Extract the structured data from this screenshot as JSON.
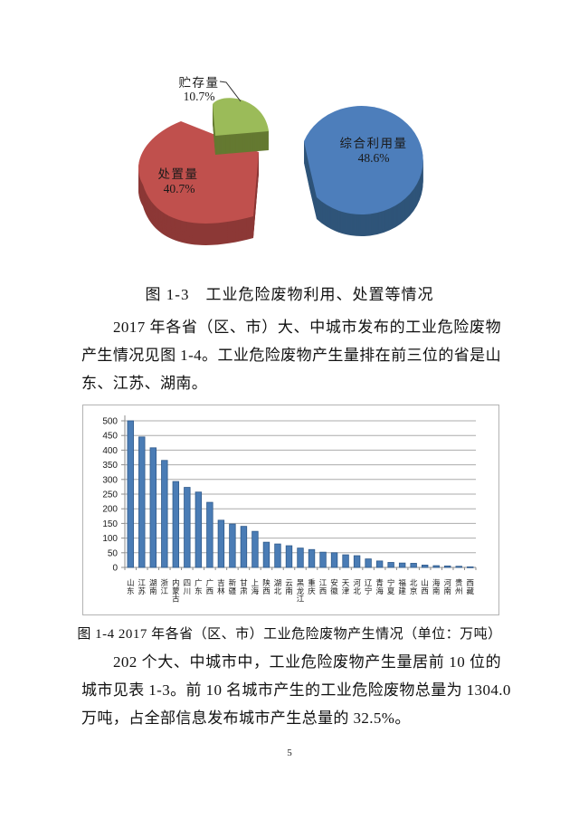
{
  "page": {
    "number": "5"
  },
  "figures": {
    "fig3_caption": "图 1-3　工业危险废物利用、处置等情况",
    "fig4_caption": "图 1-4 2017 年各省（区、市）工业危险废物产生情况（单位：万吨）"
  },
  "paragraphs": {
    "p1_line1": "2017 年各省（区、市）大、中城市发布的工业危险废物",
    "p1_line2": "产生情况见图 1-4。工业危险废物产生量排在前三位的省是山",
    "p1_line3": "东、江苏、湖南。",
    "p2_line1": "202 个大、中城市中，工业危险废物产生量居前 10 位的",
    "p2_line2": "城市见表 1-3。前 10 名城市产生的工业危险废物总量为 1304.0",
    "p2_line3": "万吨，占全部信息发布城市产生总量的 32.5%。"
  },
  "chart_data": [
    {
      "type": "pie",
      "style": "3d-exploded",
      "title": "图 1-3 工业危险废物利用、处置等情况",
      "unit": "%",
      "slices": [
        {
          "label": "综合利用量",
          "value": 48.6,
          "pct_label": "48.6%",
          "color": "#4D7EBB",
          "side_color": "#2F5479"
        },
        {
          "label": "处置量",
          "value": 40.7,
          "pct_label": "40.7%",
          "color": "#C0504D",
          "side_color": "#8C3836"
        },
        {
          "label": "贮存量",
          "value": 10.7,
          "pct_label": "10.7%",
          "color": "#9BBB59",
          "side_color": "#647931"
        }
      ]
    },
    {
      "type": "bar",
      "title": "图 1-4 2017 年各省（区、市）工业危险废物产生情况",
      "unit": "万吨",
      "categories": [
        "山东",
        "江苏",
        "湖南",
        "浙江",
        "内蒙古",
        "四川",
        "广东",
        "广西",
        "吉林",
        "新疆",
        "甘肃",
        "上海",
        "陕西",
        "湖北",
        "云南",
        "黑龙江",
        "重庆",
        "江西",
        "安徽",
        "天津",
        "河北",
        "辽宁",
        "青海",
        "宁夏",
        "福建",
        "北京",
        "山西",
        "海南",
        "河南",
        "贵州",
        "西藏"
      ],
      "values": [
        500,
        445,
        408,
        365,
        293,
        273,
        257,
        222,
        161,
        148,
        140,
        123,
        86,
        80,
        74,
        66,
        61,
        52,
        50,
        43,
        40,
        29,
        22,
        17,
        15,
        14,
        8,
        6,
        5,
        4,
        2
      ],
      "ylim": [
        0,
        500
      ],
      "ytick_step": 50,
      "grid": true,
      "legend": "none",
      "bar_color": "#4A7CB5",
      "bar_edge": "#2F5A8B",
      "grid_color": "#ABABAB",
      "axis_color": "#8C8C8C"
    }
  ]
}
